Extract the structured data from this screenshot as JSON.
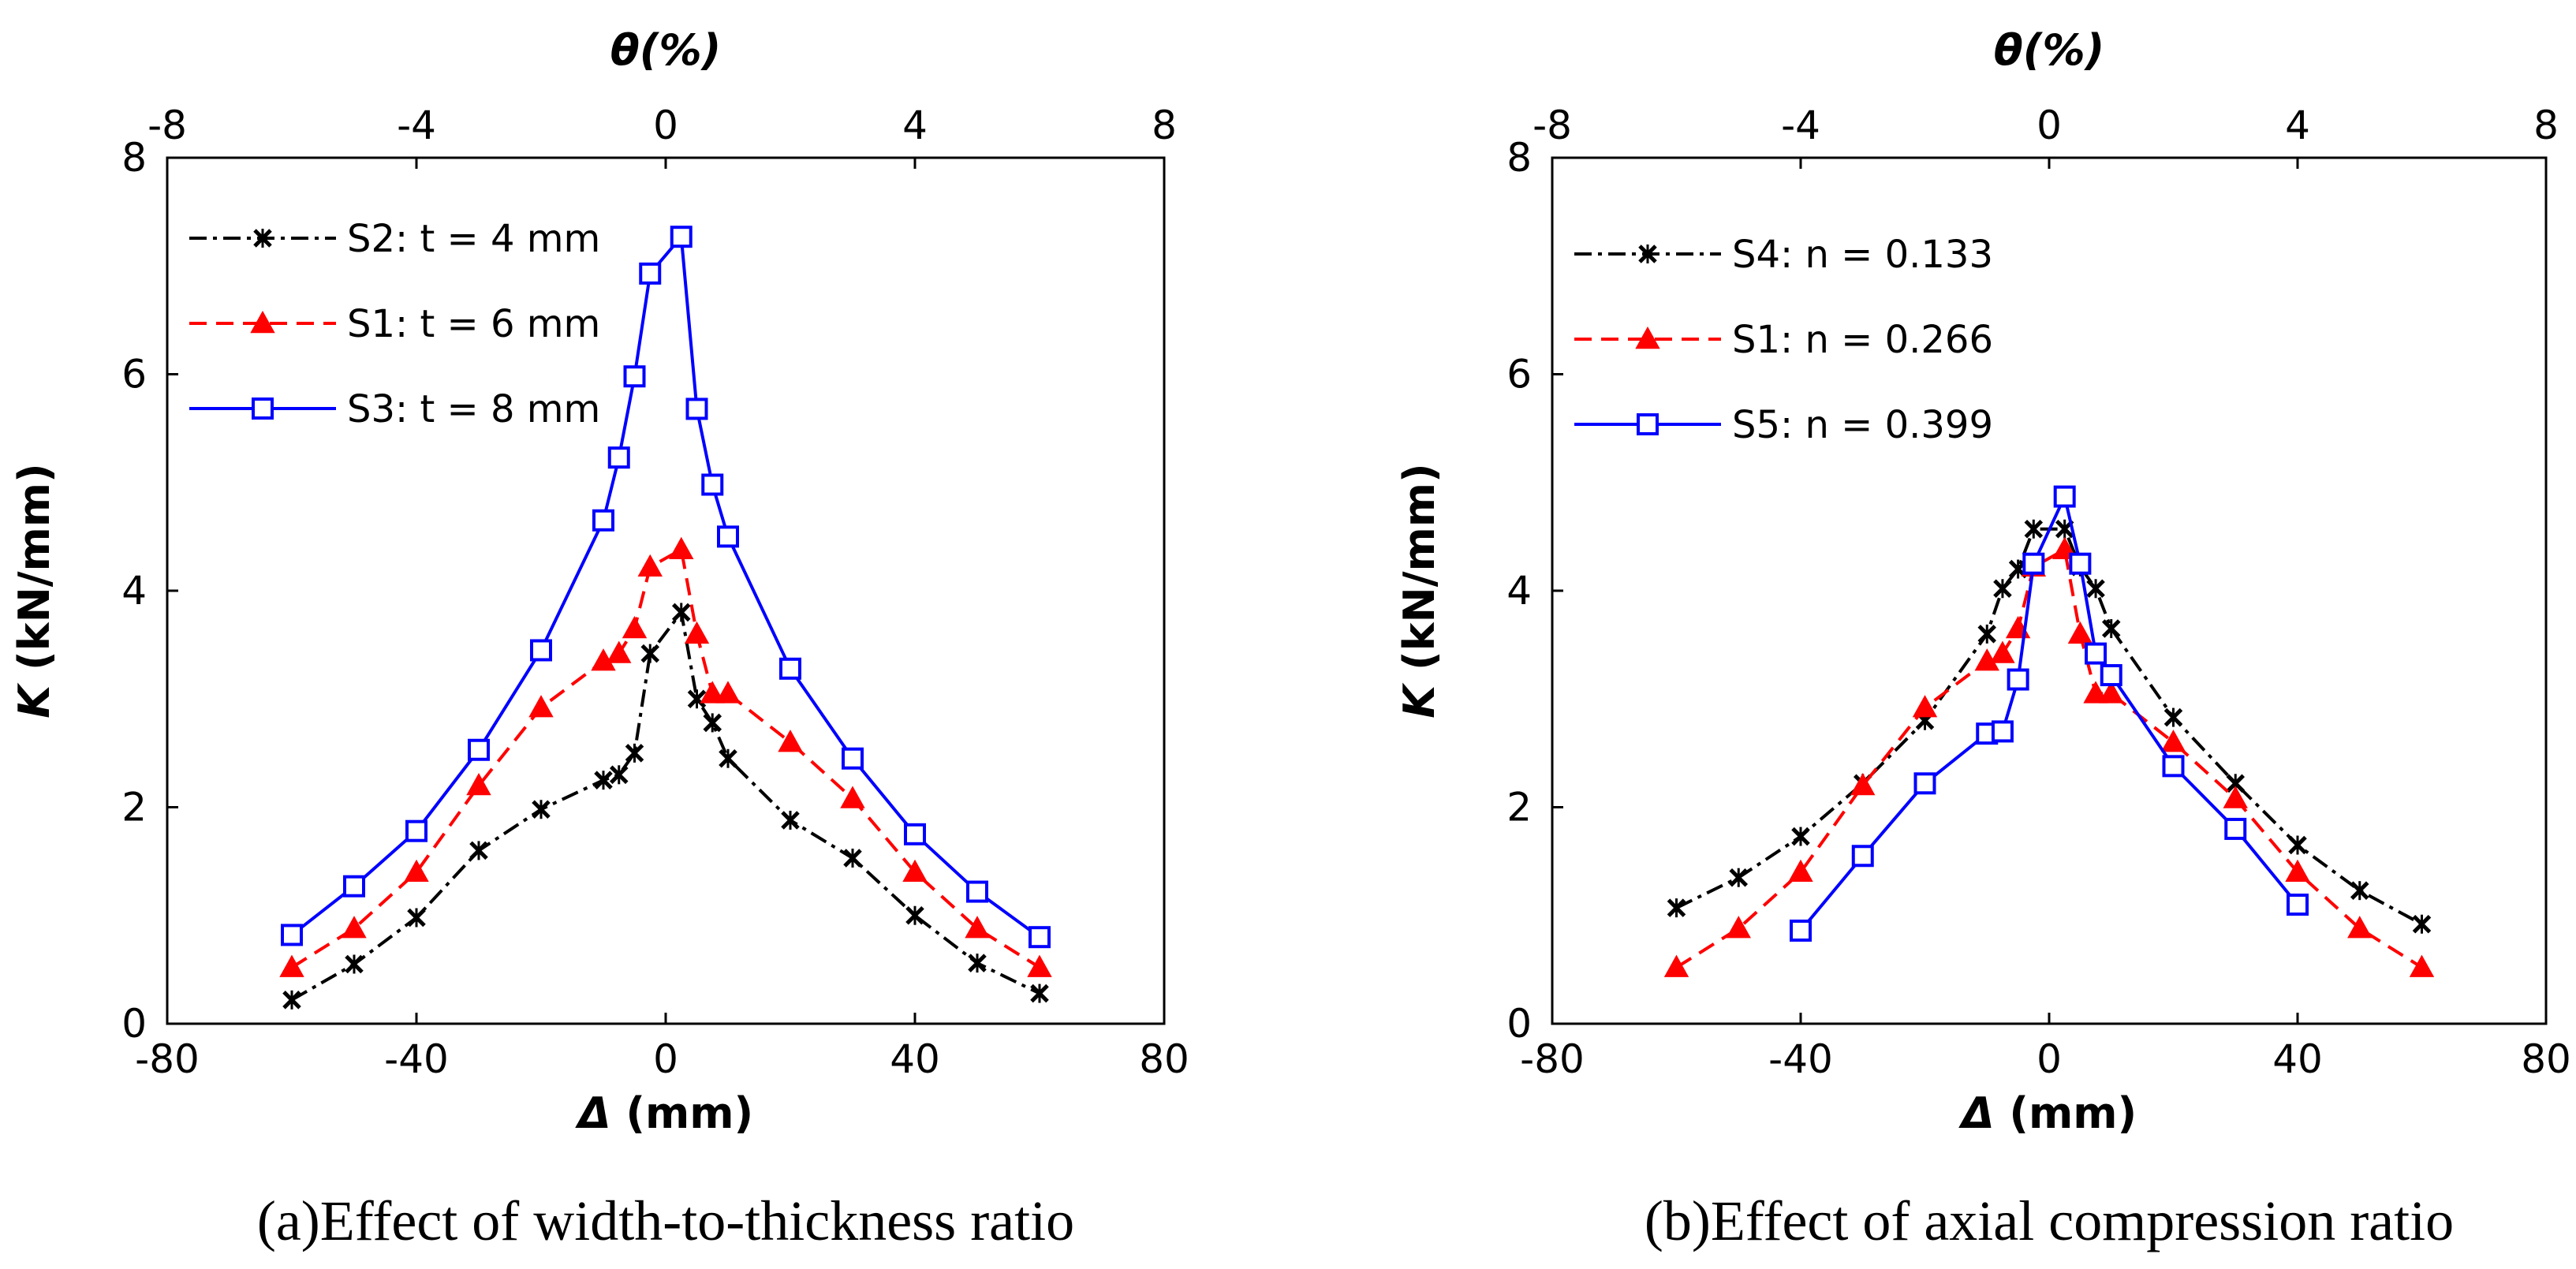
{
  "chart_data": [
    {
      "type": "line",
      "caption": "(a)Effect of width-to-thickness ratio",
      "xlabel": "Δ (mm)",
      "ylabel": "K (kN/mm)",
      "top_xlabel": "θ(%)",
      "xlim": [
        -80,
        80
      ],
      "ylim": [
        0,
        8
      ],
      "x_ticks": [
        -80,
        -40,
        0,
        40,
        80
      ],
      "y_ticks": [
        0,
        2,
        4,
        6,
        8
      ],
      "top_xlim": [
        -8,
        8
      ],
      "top_x_ticks": [
        -8,
        -4,
        0,
        4,
        8
      ],
      "legend_position": "top-left",
      "series": [
        {
          "name": "S2: t = 4 mm",
          "color": "#000000",
          "marker": "x",
          "dash": "dashdot",
          "x": [
            -60,
            -50,
            -40,
            -30,
            -20,
            -10,
            -7.5,
            -5,
            -2.5,
            2.5,
            5,
            7.5,
            10,
            20,
            30,
            40,
            50,
            60
          ],
          "y": [
            0.22,
            0.55,
            0.98,
            1.6,
            1.98,
            2.25,
            2.3,
            2.5,
            3.42,
            3.8,
            3.0,
            2.78,
            2.45,
            1.88,
            1.53,
            1.0,
            0.56,
            0.28
          ]
        },
        {
          "name": "S1: t = 6 mm",
          "color": "#ff0000",
          "marker": "triangle",
          "dash": "dash",
          "x": [
            -60,
            -50,
            -40,
            -30,
            -20,
            -10,
            -7.5,
            -5,
            -2.5,
            2.5,
            5,
            7.5,
            10,
            20,
            30,
            40,
            50,
            60
          ],
          "y": [
            0.52,
            0.88,
            1.4,
            2.2,
            2.92,
            3.35,
            3.42,
            3.65,
            4.22,
            4.38,
            3.6,
            3.05,
            3.05,
            2.6,
            2.08,
            1.4,
            0.88,
            0.52
          ]
        },
        {
          "name": "S3: t = 8 mm",
          "color": "#0000ff",
          "marker": "square",
          "dash": "solid",
          "x": [
            -60,
            -50,
            -40,
            -30,
            -20,
            -10,
            -7.5,
            -5,
            -2.5,
            2.5,
            5,
            7.5,
            10,
            20,
            30,
            40,
            50,
            60
          ],
          "y": [
            0.82,
            1.27,
            1.78,
            2.53,
            3.45,
            4.65,
            5.23,
            5.98,
            6.93,
            7.27,
            5.68,
            4.98,
            4.5,
            3.28,
            2.45,
            1.75,
            1.22,
            0.8
          ]
        }
      ]
    },
    {
      "type": "line",
      "caption": "(b)Effect of axial compression ratio",
      "xlabel": "Δ (mm)",
      "ylabel": "K (kN/mm)",
      "top_xlabel": "θ(%)",
      "xlim": [
        -80,
        80
      ],
      "ylim": [
        0,
        8
      ],
      "x_ticks": [
        -80,
        -40,
        0,
        40,
        80
      ],
      "y_ticks": [
        0,
        2,
        4,
        6,
        8
      ],
      "top_xlim": [
        -8,
        8
      ],
      "top_x_ticks": [
        -8,
        -4,
        0,
        4,
        8
      ],
      "legend_position": "top-left",
      "series": [
        {
          "name": "S4: n = 0.133",
          "color": "#000000",
          "marker": "x",
          "dash": "dashdot",
          "x": [
            -60,
            -50,
            -40,
            -30,
            -20,
            -10,
            -7.5,
            -5,
            -2.5,
            2.5,
            5,
            7.5,
            10,
            20,
            30,
            40,
            50,
            60
          ],
          "y": [
            1.07,
            1.35,
            1.73,
            2.22,
            2.8,
            3.6,
            4.02,
            4.2,
            4.57,
            4.57,
            4.22,
            4.02,
            3.65,
            2.83,
            2.22,
            1.65,
            1.23,
            0.92
          ]
        },
        {
          "name": "S1: n = 0.266",
          "color": "#ff0000",
          "marker": "triangle",
          "dash": "dash",
          "x": [
            -60,
            -50,
            -40,
            -30,
            -20,
            -10,
            -7.5,
            -5,
            -2.5,
            2.5,
            5,
            7.5,
            10,
            20,
            30,
            40,
            50,
            60
          ],
          "y": [
            0.52,
            0.88,
            1.4,
            2.2,
            2.92,
            3.35,
            3.42,
            3.65,
            4.22,
            4.38,
            3.6,
            3.05,
            3.05,
            2.6,
            2.08,
            1.4,
            0.88,
            0.52
          ]
        },
        {
          "name": "S5: n = 0.399",
          "color": "#0000ff",
          "marker": "square",
          "dash": "solid",
          "x": [
            -40,
            -30,
            -20,
            -10,
            -7.5,
            -5,
            -2.5,
            2.5,
            5,
            7.5,
            10,
            20,
            30,
            40
          ],
          "y": [
            0.86,
            1.55,
            2.22,
            2.68,
            2.7,
            3.18,
            4.25,
            4.87,
            4.25,
            3.42,
            3.22,
            2.38,
            1.8,
            1.1
          ]
        }
      ]
    }
  ]
}
